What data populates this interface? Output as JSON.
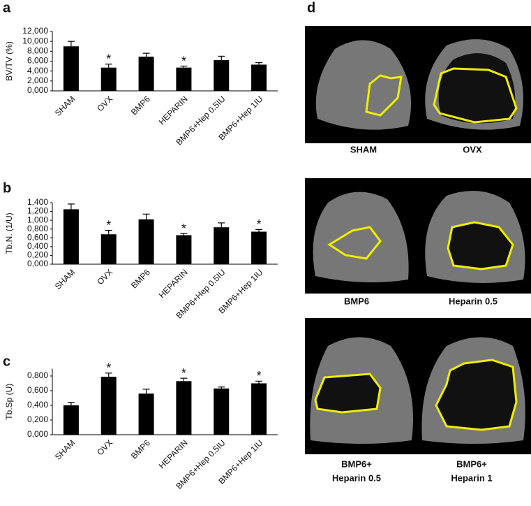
{
  "chart_data": [
    {
      "type": "bar",
      "panel_label": "a",
      "y_label": "BV/TV (%)",
      "categories": [
        "SHAM",
        "OVX",
        "BMP6",
        "HEPARIN",
        "BMP6+Hep 0.5IU",
        "BMP6+Hep 1IU"
      ],
      "values": [
        9.0,
        4.7,
        6.9,
        4.7,
        6.2,
        5.3
      ],
      "errors": [
        1.0,
        0.7,
        0.7,
        0.3,
        0.8,
        0.4
      ],
      "annotations": [
        null,
        "*",
        null,
        "*",
        null,
        null
      ],
      "color": "#000000",
      "ylim": [
        0,
        12
      ],
      "yticks": [
        {
          "value": 0,
          "label": "0,000"
        },
        {
          "value": 2,
          "label": "2,000"
        },
        {
          "value": 4,
          "label": "4,000"
        },
        {
          "value": 6,
          "label": "6,000"
        },
        {
          "value": 8,
          "label": "8,000"
        },
        {
          "value": 10,
          "label": "10,000"
        },
        {
          "value": 12,
          "label": "12,000"
        }
      ]
    },
    {
      "type": "bar",
      "panel_label": "b",
      "y_label": "Tb.N. (1/U)",
      "categories": [
        "SHAM",
        "OVX",
        "BMP6",
        "HEPARIN",
        "BMP6+Hep 0.5IU",
        "BMP6+Hep 1IU"
      ],
      "values": [
        1.25,
        0.68,
        1.02,
        0.66,
        0.84,
        0.74
      ],
      "errors": [
        0.12,
        0.09,
        0.12,
        0.04,
        0.1,
        0.05
      ],
      "annotations": [
        null,
        "*",
        null,
        "*",
        null,
        "*"
      ],
      "color": "#000000",
      "ylim": [
        0,
        1.4
      ],
      "yticks": [
        {
          "value": 0,
          "label": "0,000"
        },
        {
          "value": 0.2,
          "label": "0,200"
        },
        {
          "value": 0.4,
          "label": "0,400"
        },
        {
          "value": 0.6,
          "label": "0,600"
        },
        {
          "value": 0.8,
          "label": "0,800"
        },
        {
          "value": 1.0,
          "label": "1,000"
        },
        {
          "value": 1.2,
          "label": "1,200"
        },
        {
          "value": 1.4,
          "label": "1,400"
        }
      ]
    },
    {
      "type": "bar",
      "panel_label": "c",
      "y_label": "Tb.Sp (U)",
      "categories": [
        "SHAM",
        "OVX",
        "BMP6",
        "HEPARIN",
        "BMP6+Hep 0.5IU",
        "BMP6+Hep 1IU"
      ],
      "values": [
        0.4,
        0.79,
        0.56,
        0.73,
        0.63,
        0.7
      ],
      "errors": [
        0.04,
        0.05,
        0.06,
        0.04,
        0.02,
        0.03
      ],
      "annotations": [
        null,
        "*",
        null,
        "*",
        null,
        "*"
      ],
      "color": "#000000",
      "ylim": [
        0,
        0.9
      ],
      "yticks": [
        {
          "value": 0,
          "label": "0,000"
        },
        {
          "value": 0.2,
          "label": "0,200"
        },
        {
          "value": 0.4,
          "label": "0,400"
        },
        {
          "value": 0.6,
          "label": "0,600"
        },
        {
          "value": 0.8,
          "label": "0,800"
        }
      ]
    }
  ],
  "panel_d": {
    "panel_label": "d",
    "captions": [
      [
        "SHAM"
      ],
      [
        "OVX"
      ],
      [
        "BMP6"
      ],
      [
        "Heparin 0.5"
      ],
      [
        "BMP6+",
        "Heparin 0.5"
      ],
      [
        "BMP6+",
        "Heparin 1"
      ]
    ]
  }
}
